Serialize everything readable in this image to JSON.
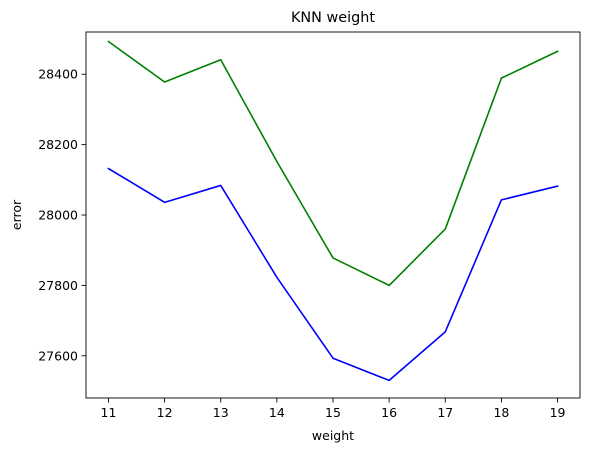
{
  "chart_data": {
    "type": "line",
    "title": "KNN weight",
    "xlabel": "weight",
    "ylabel": "error",
    "x": [
      11,
      12,
      13,
      14,
      15,
      16,
      17,
      18,
      19
    ],
    "xticks": [
      11,
      12,
      13,
      14,
      15,
      16,
      17,
      18,
      19
    ],
    "yticks": [
      27600,
      27800,
      28000,
      28200,
      28400
    ],
    "xlim": [
      10.6,
      19.4
    ],
    "ylim": [
      27480,
      28520
    ],
    "grid": false,
    "series": [
      {
        "color": "#008000",
        "values": [
          28493,
          28378,
          28441,
          28152,
          27878,
          27800,
          27960,
          28389,
          28465
        ]
      },
      {
        "color": "#0000ff",
        "values": [
          28132,
          28036,
          28084,
          27823,
          27593,
          27530,
          27668,
          28043,
          28082
        ]
      }
    ]
  }
}
